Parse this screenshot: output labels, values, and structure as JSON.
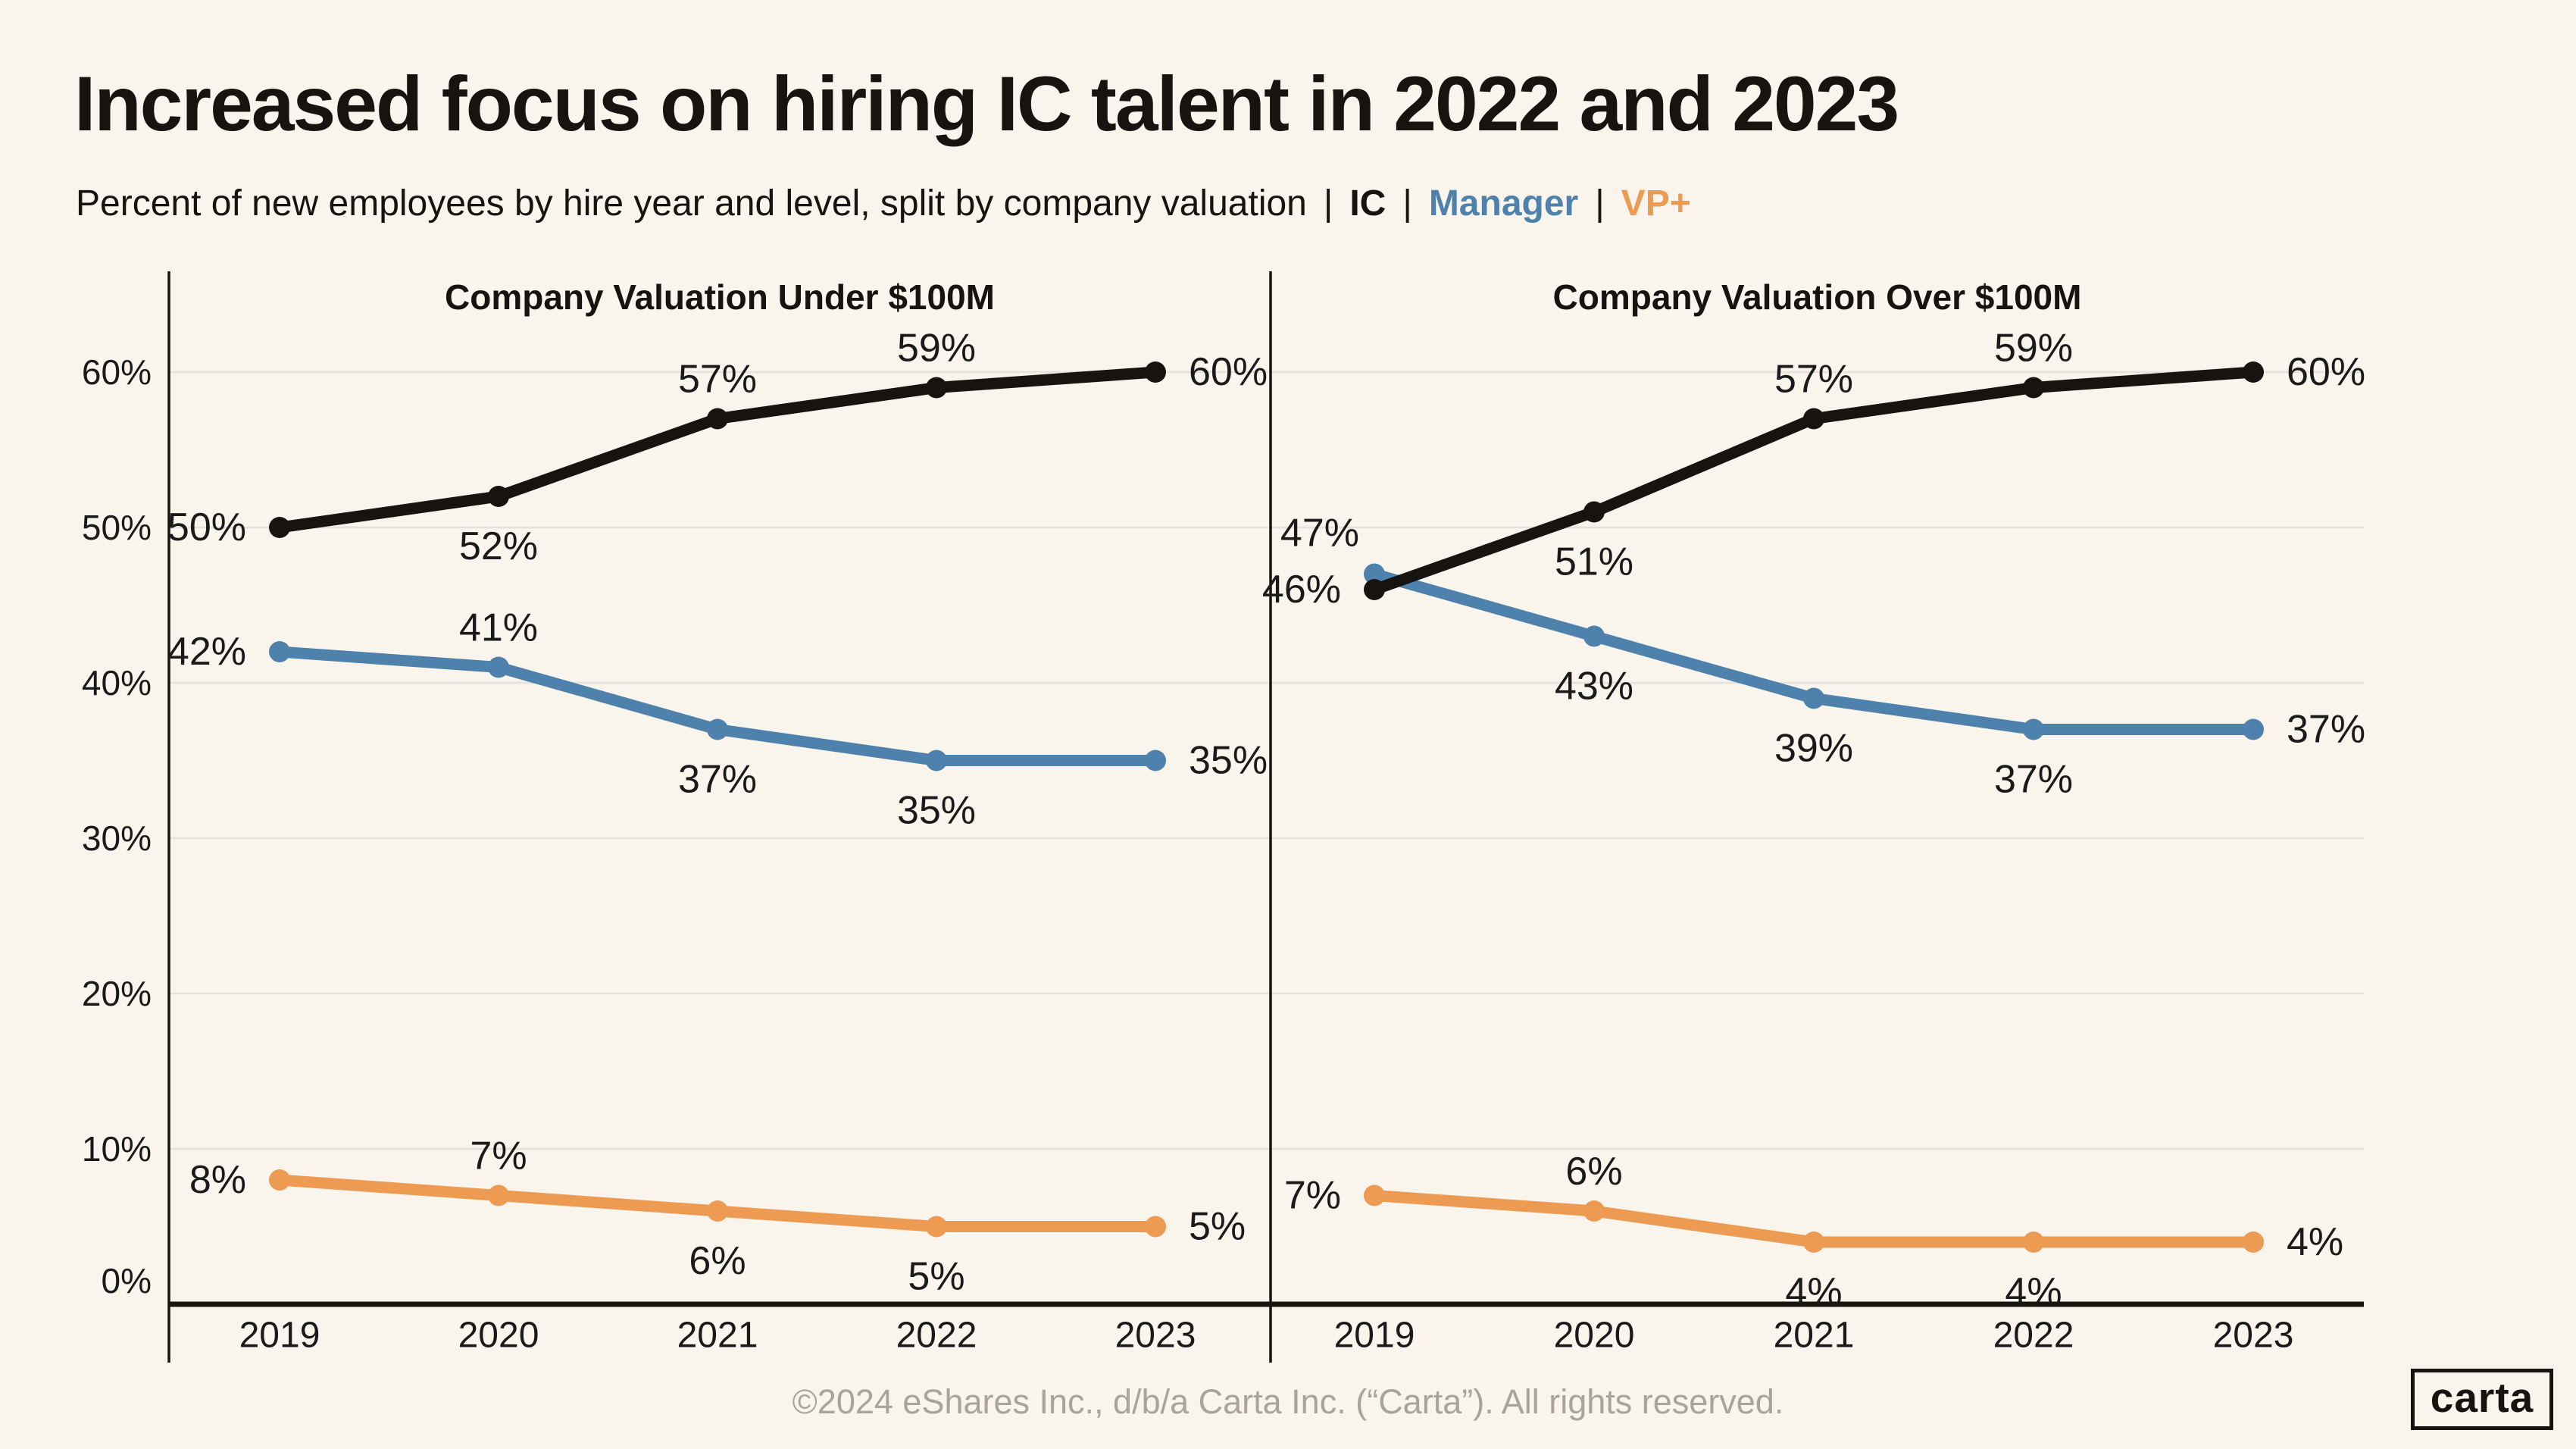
{
  "header": {
    "title": "Increased focus on hiring IC talent in 2022 and 2023",
    "subtitle": "Percent of new employees by hire year and level, split by company valuation",
    "legend_separator": "|",
    "legend": [
      {
        "label": "IC",
        "color": "#161310"
      },
      {
        "label": "Manager",
        "color": "#4E81AB"
      },
      {
        "label": "VP+",
        "color": "#ED9A52"
      }
    ]
  },
  "footer": {
    "copyright": "©2024 eShares Inc., d/b/a Carta Inc. (“Carta”). All rights reserved.",
    "logo_text": "carta"
  },
  "colors": {
    "background": "#F9F5ED",
    "ink": "#161310",
    "gridline": "#E4E2DC",
    "label_text": "#1A1A1A",
    "footer_text": "#A8A39B",
    "ic": "#161310",
    "manager": "#4E81AB",
    "vp_plus": "#ED9A52"
  },
  "chart_data": [
    {
      "type": "line",
      "title": "Company Valuation Under $100M",
      "categories": [
        "2019",
        "2020",
        "2021",
        "2022",
        "2023"
      ],
      "ylim": [
        0,
        66
      ],
      "yticks": [
        0,
        10,
        20,
        30,
        40,
        50,
        60
      ],
      "ytick_suffix": "%",
      "grid": true,
      "legend_position": "subtitle",
      "series": [
        {
          "name": "IC",
          "color": "#161310",
          "values": [
            50,
            52,
            57,
            59,
            60
          ],
          "label_pos": [
            "left",
            "below",
            "above",
            "above",
            "right"
          ]
        },
        {
          "name": "Manager",
          "color": "#4E81AB",
          "values": [
            42,
            41,
            37,
            35,
            35
          ],
          "label_pos": [
            "left",
            "above",
            "below",
            "below",
            "right"
          ]
        },
        {
          "name": "VP+",
          "color": "#ED9A52",
          "values": [
            8,
            7,
            6,
            5,
            5
          ],
          "label_pos": [
            "left",
            "above",
            "below",
            "below",
            "right"
          ]
        }
      ]
    },
    {
      "type": "line",
      "title": "Company Valuation Over $100M",
      "categories": [
        "2019",
        "2020",
        "2021",
        "2022",
        "2023"
      ],
      "ylim": [
        0,
        66
      ],
      "yticks": [],
      "ytick_suffix": "%",
      "grid": true,
      "legend_position": "subtitle",
      "series": [
        {
          "name": "IC",
          "color": "#161310",
          "values": [
            46,
            51,
            57,
            59,
            60
          ],
          "label_pos": [
            "left",
            "below",
            "above",
            "above",
            "right"
          ]
        },
        {
          "name": "Manager",
          "color": "#4E81AB",
          "values": [
            47,
            43,
            39,
            37,
            37
          ],
          "label_pos": [
            "upper-left",
            "below",
            "below",
            "below",
            "right"
          ]
        },
        {
          "name": "VP+",
          "color": "#ED9A52",
          "values": [
            7,
            6,
            4,
            4,
            4
          ],
          "label_pos": [
            "left",
            "above",
            "below",
            "below",
            "right"
          ]
        }
      ]
    }
  ]
}
